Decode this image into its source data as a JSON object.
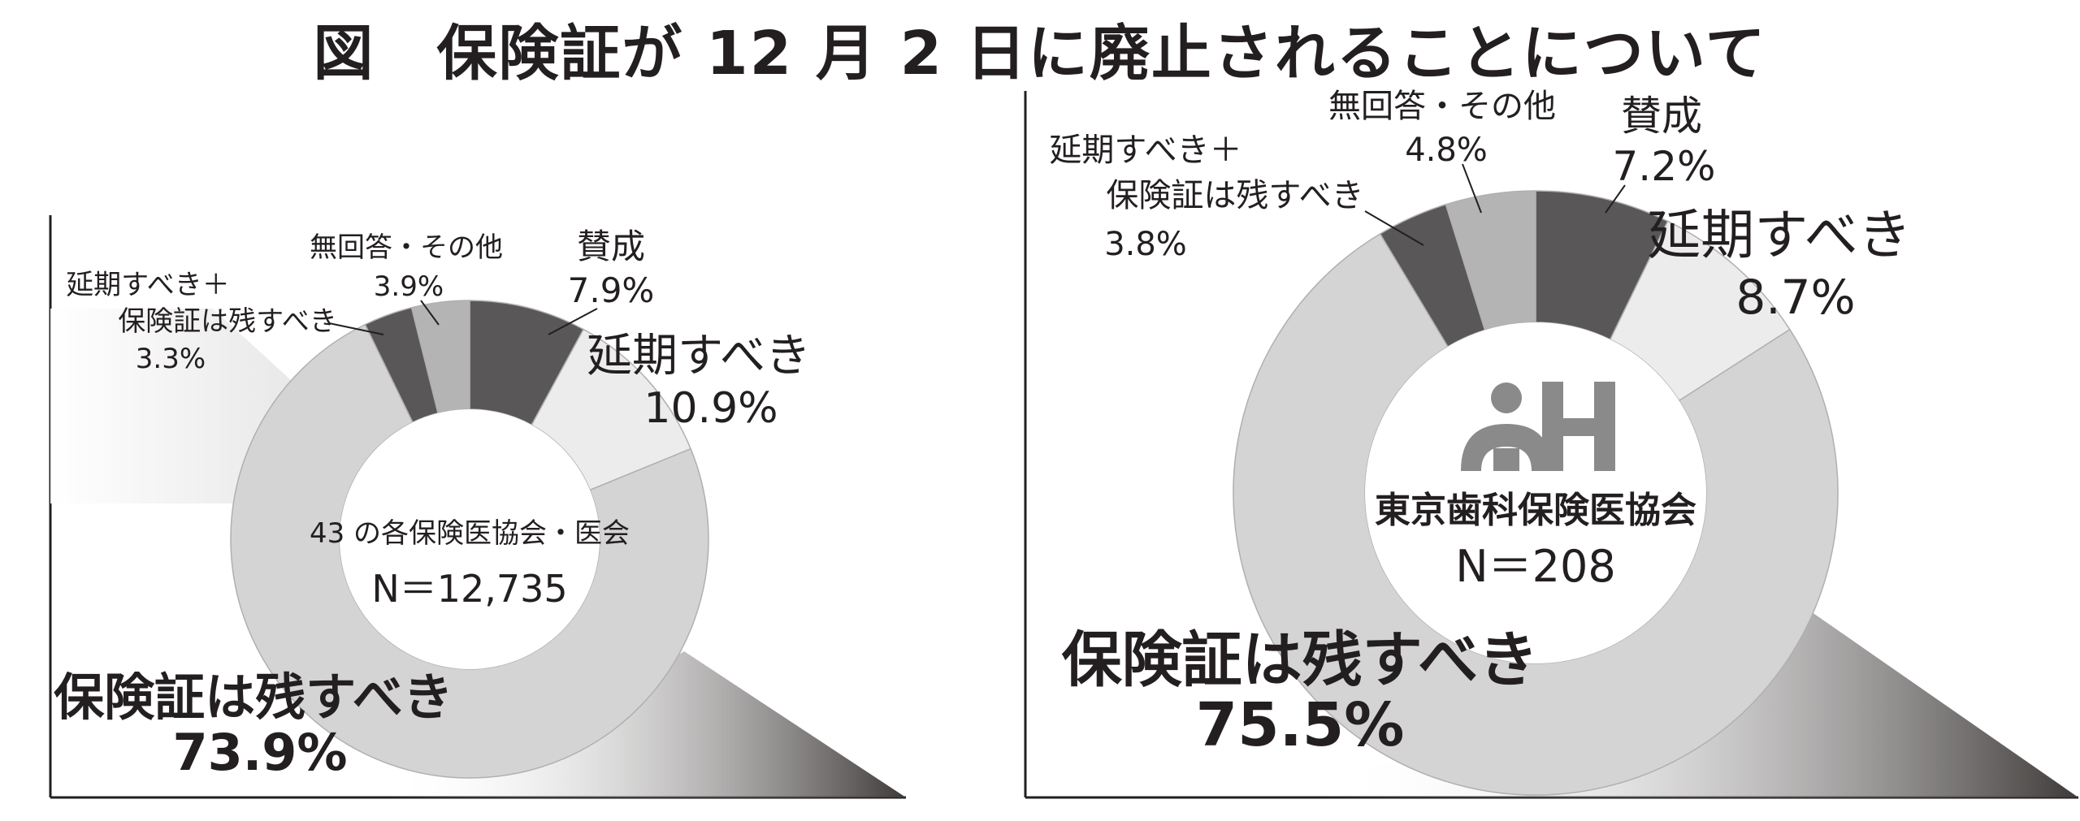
{
  "title": "図　保険証が 12 月 2 日に廃止されることについて",
  "chart_data": [
    {
      "type": "pie",
      "center_label": "43 の各保険医協会・医会",
      "n_label": "N＝12,735",
      "slices": [
        {
          "name": "賛成",
          "value": 7.9,
          "value_label": "7.9%",
          "color": "#595757"
        },
        {
          "name": "延期すべき",
          "value": 10.9,
          "value_label": "10.9%",
          "color": "#ececec"
        },
        {
          "name": "保険証は残すべき",
          "value": 73.9,
          "value_label": "73.9%",
          "color": "#d4d4d4"
        },
        {
          "name": "延期すべき＋保険証は残すべき",
          "name_lines": [
            "延期すべき＋",
            "保険証は残すべき"
          ],
          "value": 3.3,
          "value_label": "3.3%",
          "color": "#595757"
        },
        {
          "name": "無回答・その他",
          "value": 3.9,
          "value_label": "3.9%",
          "color": "#b4b4b5"
        }
      ]
    },
    {
      "type": "pie",
      "center_label": "東京歯科保険医協会",
      "n_label": "N＝208",
      "slices": [
        {
          "name": "賛成",
          "value": 7.2,
          "value_label": "7.2%",
          "color": "#595757"
        },
        {
          "name": "延期すべき",
          "value": 8.7,
          "value_label": "8.7%",
          "color": "#ececec"
        },
        {
          "name": "保険証は残すべき",
          "value": 75.5,
          "value_label": "75.5%",
          "color": "#d4d4d4"
        },
        {
          "name": "延期すべき＋保険証は残すべき",
          "name_lines": [
            "延期すべき＋",
            "保険証は残すべき"
          ],
          "value": 3.8,
          "value_label": "3.8%",
          "color": "#595757"
        },
        {
          "name": "無回答・その他",
          "value": 4.8,
          "value_label": "4.8%",
          "color": "#b4b4b5"
        }
      ]
    }
  ]
}
